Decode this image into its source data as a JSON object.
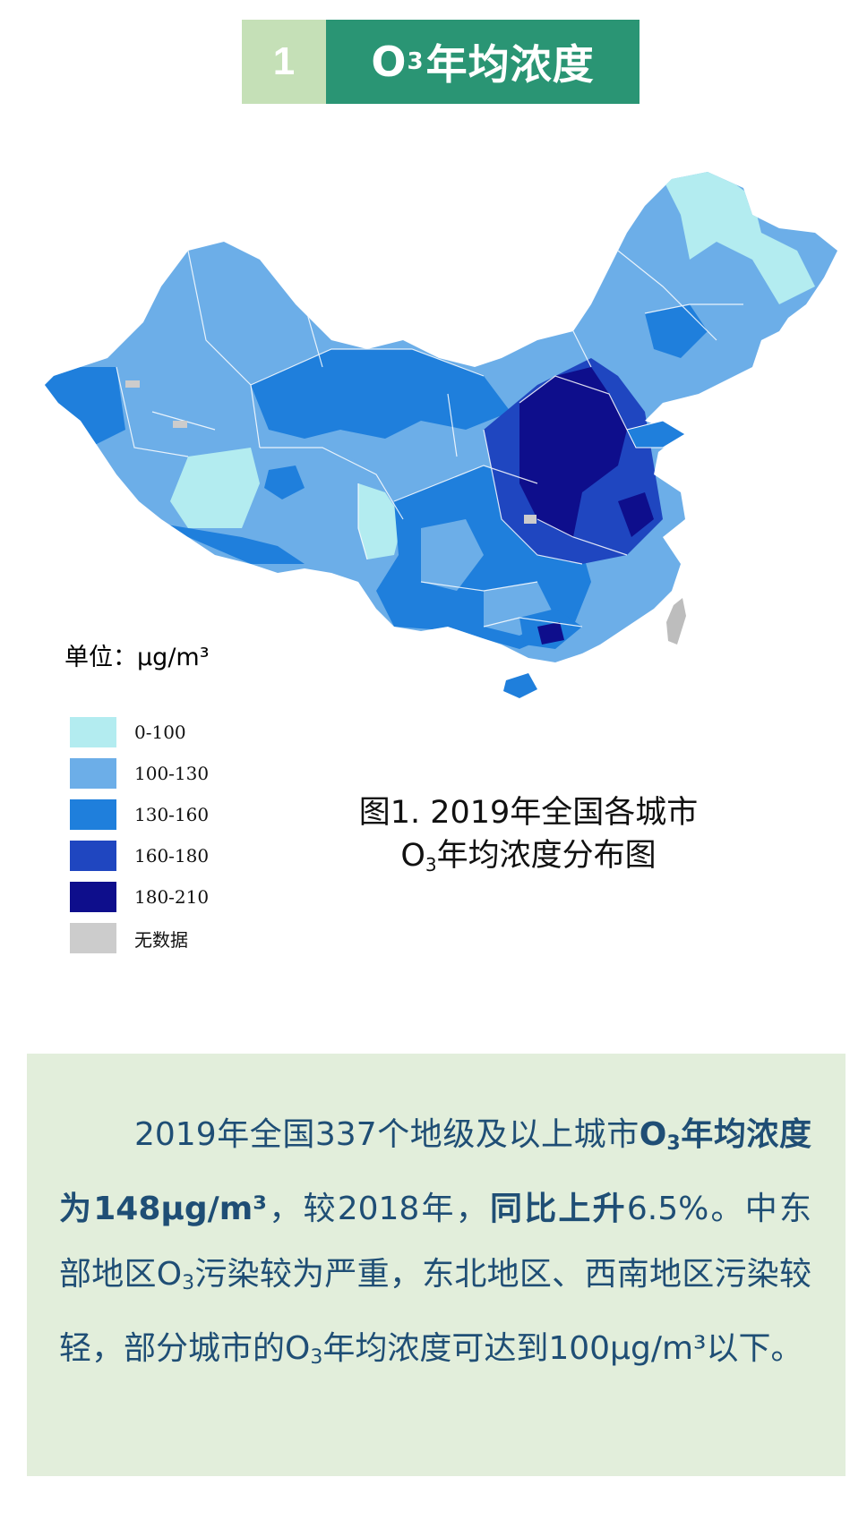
{
  "header": {
    "number": "1",
    "title_o": "O",
    "title_sub": "3",
    "title_rest": "年均浓度"
  },
  "map": {
    "unit_label": "单位：μg/m³",
    "legend": [
      {
        "label": "0-100",
        "color": "#b3ecf0"
      },
      {
        "label": "100-130",
        "color": "#6caee8"
      },
      {
        "label": "130-160",
        "color": "#1f7fdc"
      },
      {
        "label": "160-180",
        "color": "#1f46c0"
      },
      {
        "label": "180-210",
        "color": "#0e0e8c"
      },
      {
        "label": "无数据",
        "color": "#cccccc"
      }
    ],
    "taiwan_color": "#bdbdbd"
  },
  "caption": {
    "line1": "图1. 2019年全国各城市",
    "line2_o": "O",
    "line2_sub": "3",
    "line2_rest": "年均浓度分布图"
  },
  "summary": {
    "t1": "2019年全国337个地级及以上城市",
    "b1_o": "O",
    "b1_sub": "3",
    "b1_rest": "年均浓度为148μg/m³",
    "t2": "，较2018年，",
    "b2": "同比上升",
    "t3": "6.5%。中东部地区O",
    "t3_sub": "3",
    "t4": "污染较为严重，东北地区、西南地区污染较轻，部分城市的O",
    "t4_sub": "3",
    "t5": "年均浓度可达到100μg/m³以下。"
  }
}
